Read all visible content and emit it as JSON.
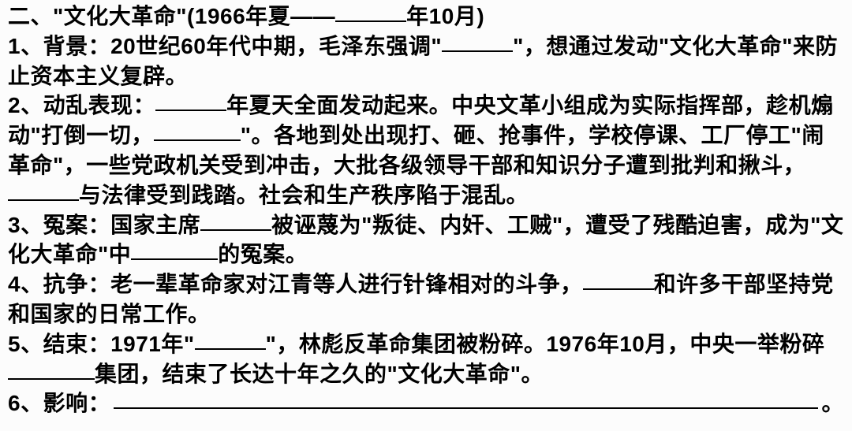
{
  "title_prefix": "二、\"文化大革命\"(1966年夏——",
  "title_suffix": "年10月)",
  "p1_a": "1、背景：20世纪60年代中期，毛泽东强调\"",
  "p1_b": "\"，想通过发动\"文化大革命\"来防止资本主义复辟。",
  "p2_a": "2、动乱表现：",
  "p2_b": "年夏天全面发动起来。中央文革小组成为实际指挥部，趁机煽动\"打倒一切，",
  "p2_c": "\"。各地到处出现打、砸、抢事件，学校停课、工厂停工\"闹革命\"，一些党政机关受到冲击，大批各级领导干部和知识分子遭到批判和揪斗，",
  "p2_d": "与法律受到践踏。社会和生产秩序陷于混乱。",
  "p3_a": "3、冤案：国家主席",
  "p3_b": "被诬蔑为\"叛徒、内奸、工贼\"，遭受了残酷迫害，成为\"文化大革命\"中",
  "p3_c": "的冤案。",
  "p4_a": "4、抗争：老一辈革命家对江青等人进行针锋相对的斗争，",
  "p4_b": "和许多干部坚持党和国家的日常工作。",
  "p5_a": "5、结束：1971年\"",
  "p5_b": "\"，林彪反革命集团被粉碎。1976年10月，中央一举粉碎",
  "p5_c": "集团，结束了长达十年之久的\"文化大革命\"。",
  "p6_a": "6、影响：",
  "p6_b": "。",
  "blanks": {
    "title": 90,
    "p1": 90,
    "p2_1": 90,
    "p2_2": 110,
    "p2_3": 90,
    "p3_1": 90,
    "p3_2": 110,
    "p4": 90,
    "p5_1": 90,
    "p5_2": 110
  },
  "colors": {
    "text": "#000000",
    "background": "#fcfcfc"
  },
  "font_size": 28,
  "font_weight": "bold"
}
